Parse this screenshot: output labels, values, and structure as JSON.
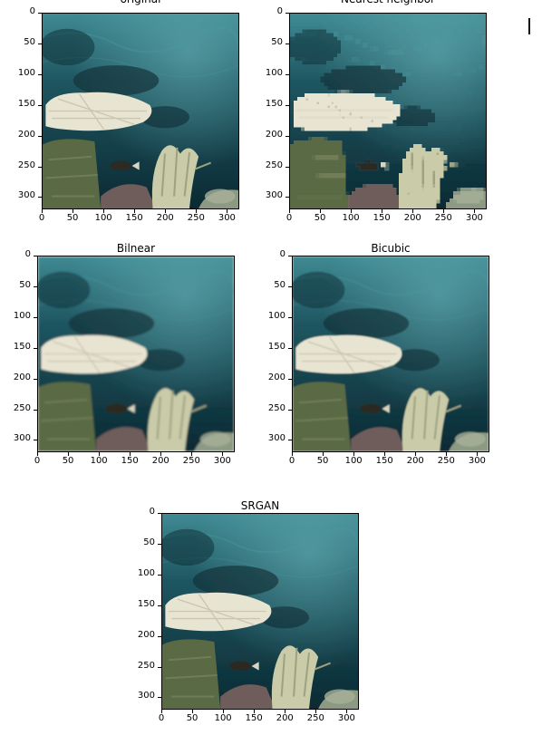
{
  "colors": {
    "water_deep": "#0b2a33",
    "water_mid": "#1e5560",
    "water_light": "#3f8a93",
    "coral_white": "#e8e4d2",
    "coral_dark": "#5a6a45",
    "rock": "#6e5d5a",
    "background": "#ffffff"
  },
  "axis": {
    "x_ticks": [
      "0",
      "50",
      "100",
      "150",
      "200",
      "250",
      "300"
    ],
    "y_ticks": [
      "0",
      "50",
      "100",
      "150",
      "200",
      "250",
      "300"
    ]
  },
  "panels": [
    {
      "id": "original",
      "title": "original",
      "blur": 0,
      "pixelate": false
    },
    {
      "id": "nearest",
      "title": "Nearest neighbor",
      "blur": 0,
      "pixelate": true
    },
    {
      "id": "bilinear",
      "title": "Bilnear",
      "blur": 1.6,
      "pixelate": false
    },
    {
      "id": "bicubic",
      "title": "Bicubic",
      "blur": 1.1,
      "pixelate": false
    },
    {
      "id": "srgan",
      "title": "SRGAN",
      "blur": 0.4,
      "pixelate": false
    }
  ]
}
